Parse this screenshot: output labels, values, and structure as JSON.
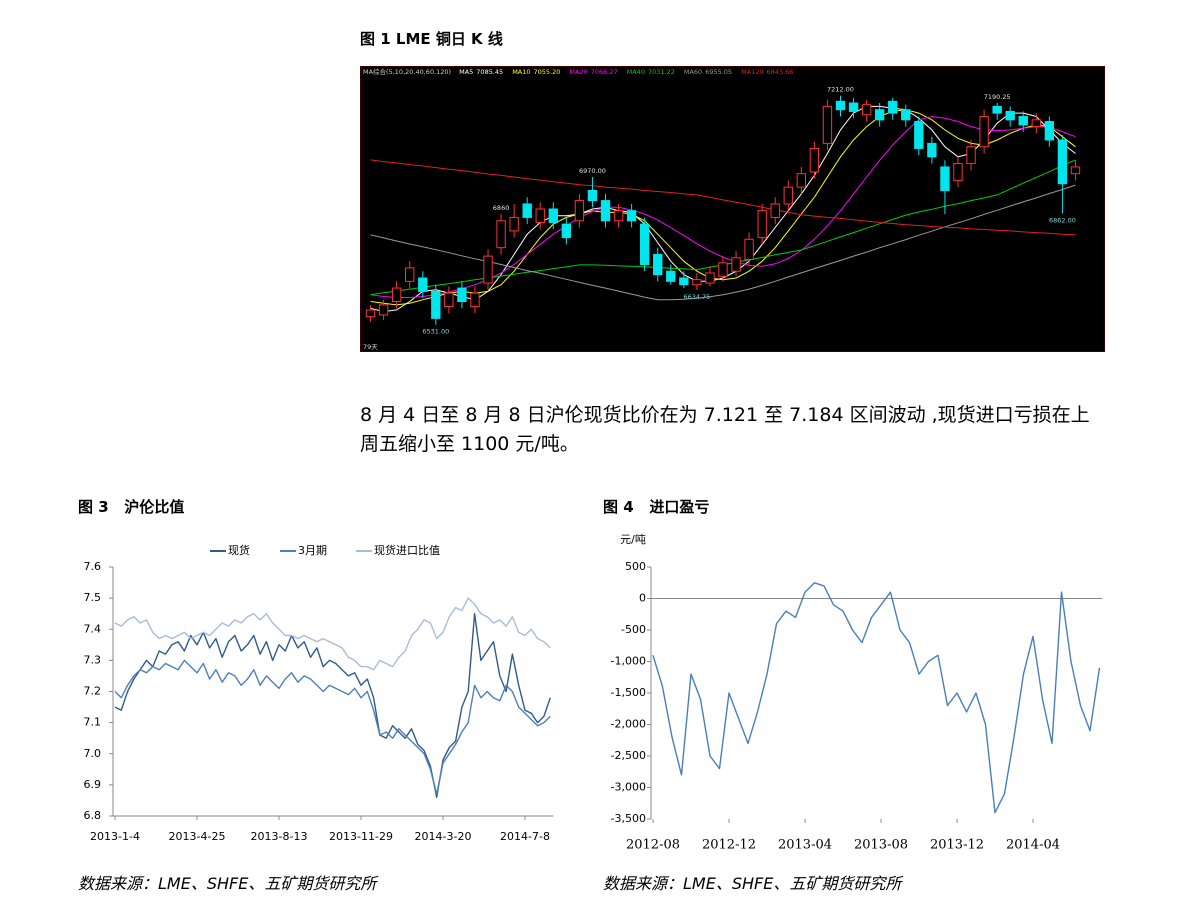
{
  "chart_data": [
    {
      "type": "candlestick",
      "title": "图 1 LME 铜日 K 线",
      "indicator_label": "MA综合(5,10,20,40,60,120)",
      "period_label": "79天",
      "up_color": "#ff3232",
      "down_color": "#00e5ee",
      "ylim": [
        6450,
        7300
      ],
      "open": [
        6555,
        6560,
        6600,
        6660,
        6670,
        6630,
        6585,
        6640,
        6585,
        6655,
        6760,
        6810,
        6890,
        6835,
        6875,
        6830,
        6840,
        6930,
        6900,
        6840,
        6870,
        6830,
        6740,
        6690,
        6670,
        6650,
        6655,
        6675,
        6690,
        6725,
        6790,
        6850,
        6890,
        6940,
        6985,
        7070,
        7195,
        7190,
        7155,
        7170,
        7195,
        7170,
        7135,
        7070,
        7000,
        6960,
        7010,
        7060,
        7180,
        7165,
        7150,
        7120,
        7135,
        7080,
        6980
      ],
      "close": [
        6575,
        6590,
        6640,
        6700,
        6630,
        6550,
        6625,
        6600,
        6625,
        6735,
        6840,
        6850,
        6850,
        6875,
        6835,
        6790,
        6900,
        6900,
        6840,
        6870,
        6840,
        6710,
        6680,
        6660,
        6650,
        6665,
        6685,
        6715,
        6730,
        6785,
        6870,
        6890,
        6940,
        6980,
        7055,
        7180,
        7170,
        7165,
        7185,
        7140,
        7160,
        7140,
        7055,
        7030,
        6930,
        7010,
        7060,
        7150,
        7160,
        7140,
        7125,
        7140,
        7080,
        6950,
        7000
      ],
      "high": [
        6590,
        6605,
        6660,
        6720,
        6690,
        6650,
        6645,
        6660,
        6645,
        6755,
        6860,
        6890,
        6910,
        6895,
        6895,
        6850,
        6920,
        6970,
        6920,
        6890,
        6890,
        6850,
        6760,
        6710,
        6690,
        6685,
        6705,
        6735,
        6750,
        6805,
        6890,
        6910,
        6960,
        7000,
        7075,
        7200,
        7212,
        7205,
        7200,
        7190,
        7205,
        7185,
        7150,
        7090,
        7020,
        7030,
        7080,
        7170,
        7190.25,
        7180,
        7165,
        7160,
        7150,
        7095,
        7020
      ],
      "low": [
        6540,
        6545,
        6580,
        6640,
        6610,
        6531,
        6565,
        6580,
        6565,
        6635,
        6740,
        6790,
        6830,
        6815,
        6815,
        6770,
        6820,
        6880,
        6820,
        6820,
        6820,
        6690,
        6660,
        6650,
        6640,
        6634.75,
        6645,
        6660,
        6675,
        6710,
        6770,
        6830,
        6870,
        6920,
        6965,
        7050,
        7150,
        7145,
        7135,
        7120,
        7140,
        7120,
        7035,
        7010,
        6860,
        6940,
        6990,
        7040,
        7140,
        7120,
        7105,
        7100,
        7060,
        6862,
        6960
      ],
      "annotations": [
        {
          "value": 6531,
          "label": "6531.00"
        },
        {
          "value": 6970,
          "label": "6970.00"
        },
        6634.75,
        {
          "value": 7212,
          "label": "7212.00"
        },
        6860,
        {
          "value": 7190.25,
          "label": "7190.25"
        },
        {
          "value": 6862,
          "label": "6862.00"
        }
      ],
      "series": [
        {
          "name": "MA5",
          "color": "#ffffff",
          "last": 7085.45,
          "last_label": "7085.45",
          "values": [
            6580,
            6570,
            6575,
            6600,
            6630,
            6635,
            6625,
            6615,
            6605,
            6630,
            6680,
            6740,
            6800,
            6835,
            6855,
            6855,
            6860,
            6875,
            6880,
            6870,
            6865,
            6830,
            6775,
            6720,
            6680,
            6660,
            6660,
            6670,
            6690,
            6720,
            6770,
            6820,
            6870,
            6920,
            6975,
            7040,
            7110,
            7160,
            7180,
            7180,
            7175,
            7170,
            7145,
            7110,
            7060,
            7030,
            7040,
            7080,
            7130,
            7160,
            7160,
            7150,
            7110,
            7070,
            7040
          ]
        },
        {
          "name": "MA10",
          "color": "#ffff00",
          "last": 7055.2,
          "last_label": "7055.20",
          "values": [
            6600,
            6595,
            6590,
            6595,
            6605,
            6615,
            6625,
            6630,
            6625,
            6630,
            6650,
            6690,
            6740,
            6790,
            6830,
            6850,
            6860,
            6870,
            6865,
            6865,
            6860,
            6840,
            6800,
            6760,
            6720,
            6690,
            6670,
            6665,
            6670,
            6690,
            6720,
            6760,
            6810,
            6860,
            6910,
            6970,
            7030,
            7080,
            7120,
            7150,
            7165,
            7170,
            7160,
            7140,
            7110,
            7085,
            7070,
            7065,
            7080,
            7100,
            7115,
            7125,
            7120,
            7090,
            7060
          ]
        },
        {
          "name": "MA20",
          "color": "#ff00ff",
          "last": 7066.27,
          "last_label": "7066.27",
          "values": [
            6620,
            6615,
            6612,
            6612,
            6615,
            6620,
            6628,
            6638,
            6650,
            6665,
            6685,
            6710,
            6740,
            6770,
            6800,
            6825,
            6850,
            6868,
            6880,
            6880,
            6872,
            6860,
            6842,
            6820,
            6796,
            6772,
            6750,
            6732,
            6718,
            6708,
            6705,
            6712,
            6728,
            6752,
            6785,
            6825,
            6870,
            6920,
            6970,
            7020,
            7065,
            7105,
            7140,
            7150,
            7145,
            7135,
            7120,
            7110,
            7108,
            7110,
            7115,
            7120,
            7118,
            7105,
            7090
          ]
        },
        {
          "name": "MA40",
          "color": "#00d000",
          "last": 7031.22,
          "last_label": "7031.22",
          "values": [
            6620,
            6626,
            6631,
            6637,
            6642,
            6648,
            6653,
            6659,
            6665,
            6670,
            6676,
            6681,
            6687,
            6692,
            6698,
            6703,
            6709,
            6709,
            6708,
            6706,
            6705,
            6703,
            6701,
            6699,
            6697,
            6695,
            6702,
            6709,
            6717,
            6724,
            6731,
            6739,
            6746,
            6753,
            6766,
            6779,
            6792,
            6805,
            6818,
            6831,
            6844,
            6857,
            6866,
            6874,
            6883,
            6891,
            6900,
            6908,
            6917,
            6934,
            6952,
            6969,
            6986,
            7004,
            7021
          ]
        },
        {
          "name": "MA60",
          "color": "#9a9a9a",
          "last": 6955.05,
          "last_label": "6955.05",
          "values": [
            6798,
            6789,
            6780,
            6771,
            6763,
            6754,
            6745,
            6736,
            6727,
            6719,
            6710,
            6701,
            6692,
            6684,
            6675,
            6666,
            6657,
            6648,
            6640,
            6631,
            6622,
            6613,
            6605,
            6605,
            6607,
            6610,
            6614,
            6620,
            6628,
            6637,
            6648,
            6660,
            6673,
            6685,
            6698,
            6710,
            6722,
            6735,
            6747,
            6760,
            6772,
            6784,
            6797,
            6809,
            6822,
            6834,
            6846,
            6859,
            6871,
            6884,
            6896,
            6908,
            6921,
            6933,
            6946
          ]
        },
        {
          "name": "MA120",
          "color": "#e02020",
          "last": 6843.66,
          "last_label": "6843.66",
          "values": [
            7021,
            7016,
            7012,
            7007,
            7003,
            6998,
            6993,
            6989,
            6984,
            6979,
            6975,
            6970,
            6965,
            6961,
            6956,
            6952,
            6947,
            6944,
            6940,
            6937,
            6934,
            6930,
            6927,
            6924,
            6920,
            6917,
            6910,
            6902,
            6895,
            6888,
            6880,
            6873,
            6865,
            6858,
            6854,
            6850,
            6847,
            6843,
            6839,
            6835,
            6832,
            6828,
            6826,
            6823,
            6821,
            6819,
            6816,
            6814,
            6812,
            6810,
            6807,
            6805,
            6803,
            6800,
            6798
          ]
        }
      ]
    },
    {
      "type": "line",
      "title": "图 3   沪伦比值",
      "source": "数据来源：LME、SHFE、五矿期货研究所",
      "legend": "top",
      "categories": [
        "2013-1-4",
        null,
        null,
        null,
        null,
        null,
        null,
        null,
        null,
        null,
        null,
        null,
        null,
        "2013-4-25",
        null,
        null,
        null,
        null,
        null,
        null,
        null,
        null,
        null,
        null,
        null,
        null,
        "2013-8-13",
        null,
        null,
        null,
        null,
        null,
        null,
        null,
        null,
        null,
        null,
        null,
        null,
        "2013-11-29",
        null,
        null,
        null,
        null,
        null,
        null,
        null,
        null,
        null,
        null,
        null,
        null,
        "2014-3-20",
        null,
        null,
        null,
        null,
        null,
        null,
        null,
        null,
        null,
        null,
        null,
        null,
        "2014-7-8",
        null,
        null,
        null,
        null
      ],
      "ylim": [
        6.8,
        7.6
      ],
      "yticks": [
        6.8,
        6.9,
        {
          "value": 7,
          "label": "7.0"
        },
        7.1,
        7.2,
        7.3,
        7.4,
        7.5,
        7.6
      ],
      "series": [
        {
          "name": "现货",
          "color": "#2f5b8c",
          "values": [
            7.15,
            7.14,
            7.2,
            7.24,
            7.27,
            7.3,
            7.28,
            7.33,
            7.32,
            7.35,
            7.36,
            7.33,
            7.38,
            7.35,
            7.39,
            7.34,
            7.37,
            7.31,
            7.36,
            7.38,
            7.33,
            7.35,
            7.38,
            7.32,
            7.36,
            7.3,
            7.35,
            7.33,
            7.38,
            7.34,
            7.36,
            7.31,
            7.34,
            7.28,
            7.3,
            7.29,
            7.27,
            7.25,
            7.26,
            7.22,
            7.24,
            7.18,
            7.06,
            7.05,
            7.09,
            7.07,
            7.05,
            7.08,
            7.03,
            7.01,
            6.96,
            6.86,
            6.98,
            7.02,
            7.04,
            7.15,
            7.2,
            7.45,
            7.3,
            7.33,
            7.36,
            7.25,
            7.2,
            7.32,
            7.22,
            7.14,
            7.13,
            7.1,
            7.12,
            7.18
          ]
        },
        {
          "name": "3月期",
          "color": "#4f7fb9",
          "values": [
            7.2,
            7.18,
            7.22,
            7.25,
            7.27,
            7.26,
            7.28,
            7.27,
            7.29,
            7.28,
            7.27,
            7.3,
            7.28,
            7.26,
            7.29,
            7.24,
            7.27,
            7.23,
            7.26,
            7.25,
            7.22,
            7.24,
            7.27,
            7.22,
            7.25,
            7.23,
            7.21,
            7.24,
            7.26,
            7.23,
            7.25,
            7.24,
            7.22,
            7.2,
            7.22,
            7.21,
            7.2,
            7.19,
            7.21,
            7.18,
            7.2,
            7.14,
            7.06,
            7.07,
            7.05,
            7.08,
            7.06,
            7.04,
            7.02,
            7.0,
            6.95,
            6.87,
            6.97,
            7.0,
            7.03,
            7.07,
            7.1,
            7.22,
            7.18,
            7.2,
            7.18,
            7.17,
            7.22,
            7.2,
            7.15,
            7.13,
            7.11,
            7.09,
            7.1,
            7.12
          ]
        },
        {
          "name": "现货进口比值",
          "color": "#a8bcd6",
          "values": [
            7.42,
            7.41,
            7.43,
            7.44,
            7.42,
            7.43,
            7.39,
            7.37,
            7.38,
            7.37,
            7.38,
            7.39,
            7.37,
            7.38,
            7.39,
            7.38,
            7.4,
            7.42,
            7.41,
            7.43,
            7.42,
            7.44,
            7.45,
            7.43,
            7.45,
            7.42,
            7.4,
            7.38,
            7.38,
            7.37,
            7.38,
            7.37,
            7.36,
            7.37,
            7.36,
            7.35,
            7.34,
            7.31,
            7.3,
            7.28,
            7.28,
            7.27,
            7.3,
            7.29,
            7.28,
            7.31,
            7.33,
            7.38,
            7.4,
            7.43,
            7.42,
            7.37,
            7.39,
            7.44,
            7.47,
            7.46,
            7.5,
            7.48,
            7.45,
            7.44,
            7.42,
            7.43,
            7.41,
            7.44,
            7.39,
            7.38,
            7.4,
            7.37,
            7.36,
            7.34
          ]
        }
      ]
    },
    {
      "type": "line",
      "title": "图 4   进口盈亏",
      "source": "数据来源：LME、SHFE、五矿期货研究所",
      "y_label": "元/吨",
      "categories": [
        "2012-08",
        null,
        null,
        null,
        null,
        null,
        null,
        null,
        "2012-12",
        null,
        null,
        null,
        null,
        null,
        null,
        null,
        "2013-04",
        null,
        null,
        null,
        null,
        null,
        null,
        null,
        "2013-08",
        null,
        null,
        null,
        null,
        null,
        null,
        null,
        "2013-12",
        null,
        null,
        null,
        null,
        null,
        null,
        null,
        "2014-04",
        null,
        null,
        null,
        null,
        null,
        null,
        null
      ],
      "ylim": [
        -3500,
        500
      ],
      "yticks": [
        500,
        0,
        -500,
        {
          "value": -1000,
          "label": "-1,000"
        },
        {
          "value": -1500,
          "label": "-1,500"
        },
        {
          "value": -2000,
          "label": "-2,000"
        },
        {
          "value": -2500,
          "label": "-2,500"
        },
        {
          "value": -3000,
          "label": "-3,000"
        },
        {
          "value": -3500,
          "label": "-3,500"
        }
      ],
      "series": [
        {
          "color": "#4a7ebb",
          "values": [
            -900,
            -1400,
            -2200,
            -2800,
            -1200,
            -1600,
            -2500,
            -2700,
            -1500,
            -1900,
            -2300,
            -1800,
            -1200,
            -400,
            -200,
            -300,
            100,
            250,
            200,
            -100,
            -200,
            -500,
            -700,
            -300,
            -100,
            100,
            -500,
            -700,
            -1200,
            -1000,
            -900,
            -1700,
            -1500,
            -1800,
            -1500,
            -2000,
            -3400,
            -3100,
            -2200,
            -1200,
            -600,
            -1600,
            -2300,
            100,
            -1000,
            -1700,
            -2100,
            -1100
          ]
        }
      ]
    }
  ],
  "paragraph": [
    "8 月 4 日至 8 月 8 日沪伦现货比价在为 7.121 至 7.184 区间波动 ,现货进口亏损在上",
    "周五缩小至 1100 元/吨。"
  ]
}
